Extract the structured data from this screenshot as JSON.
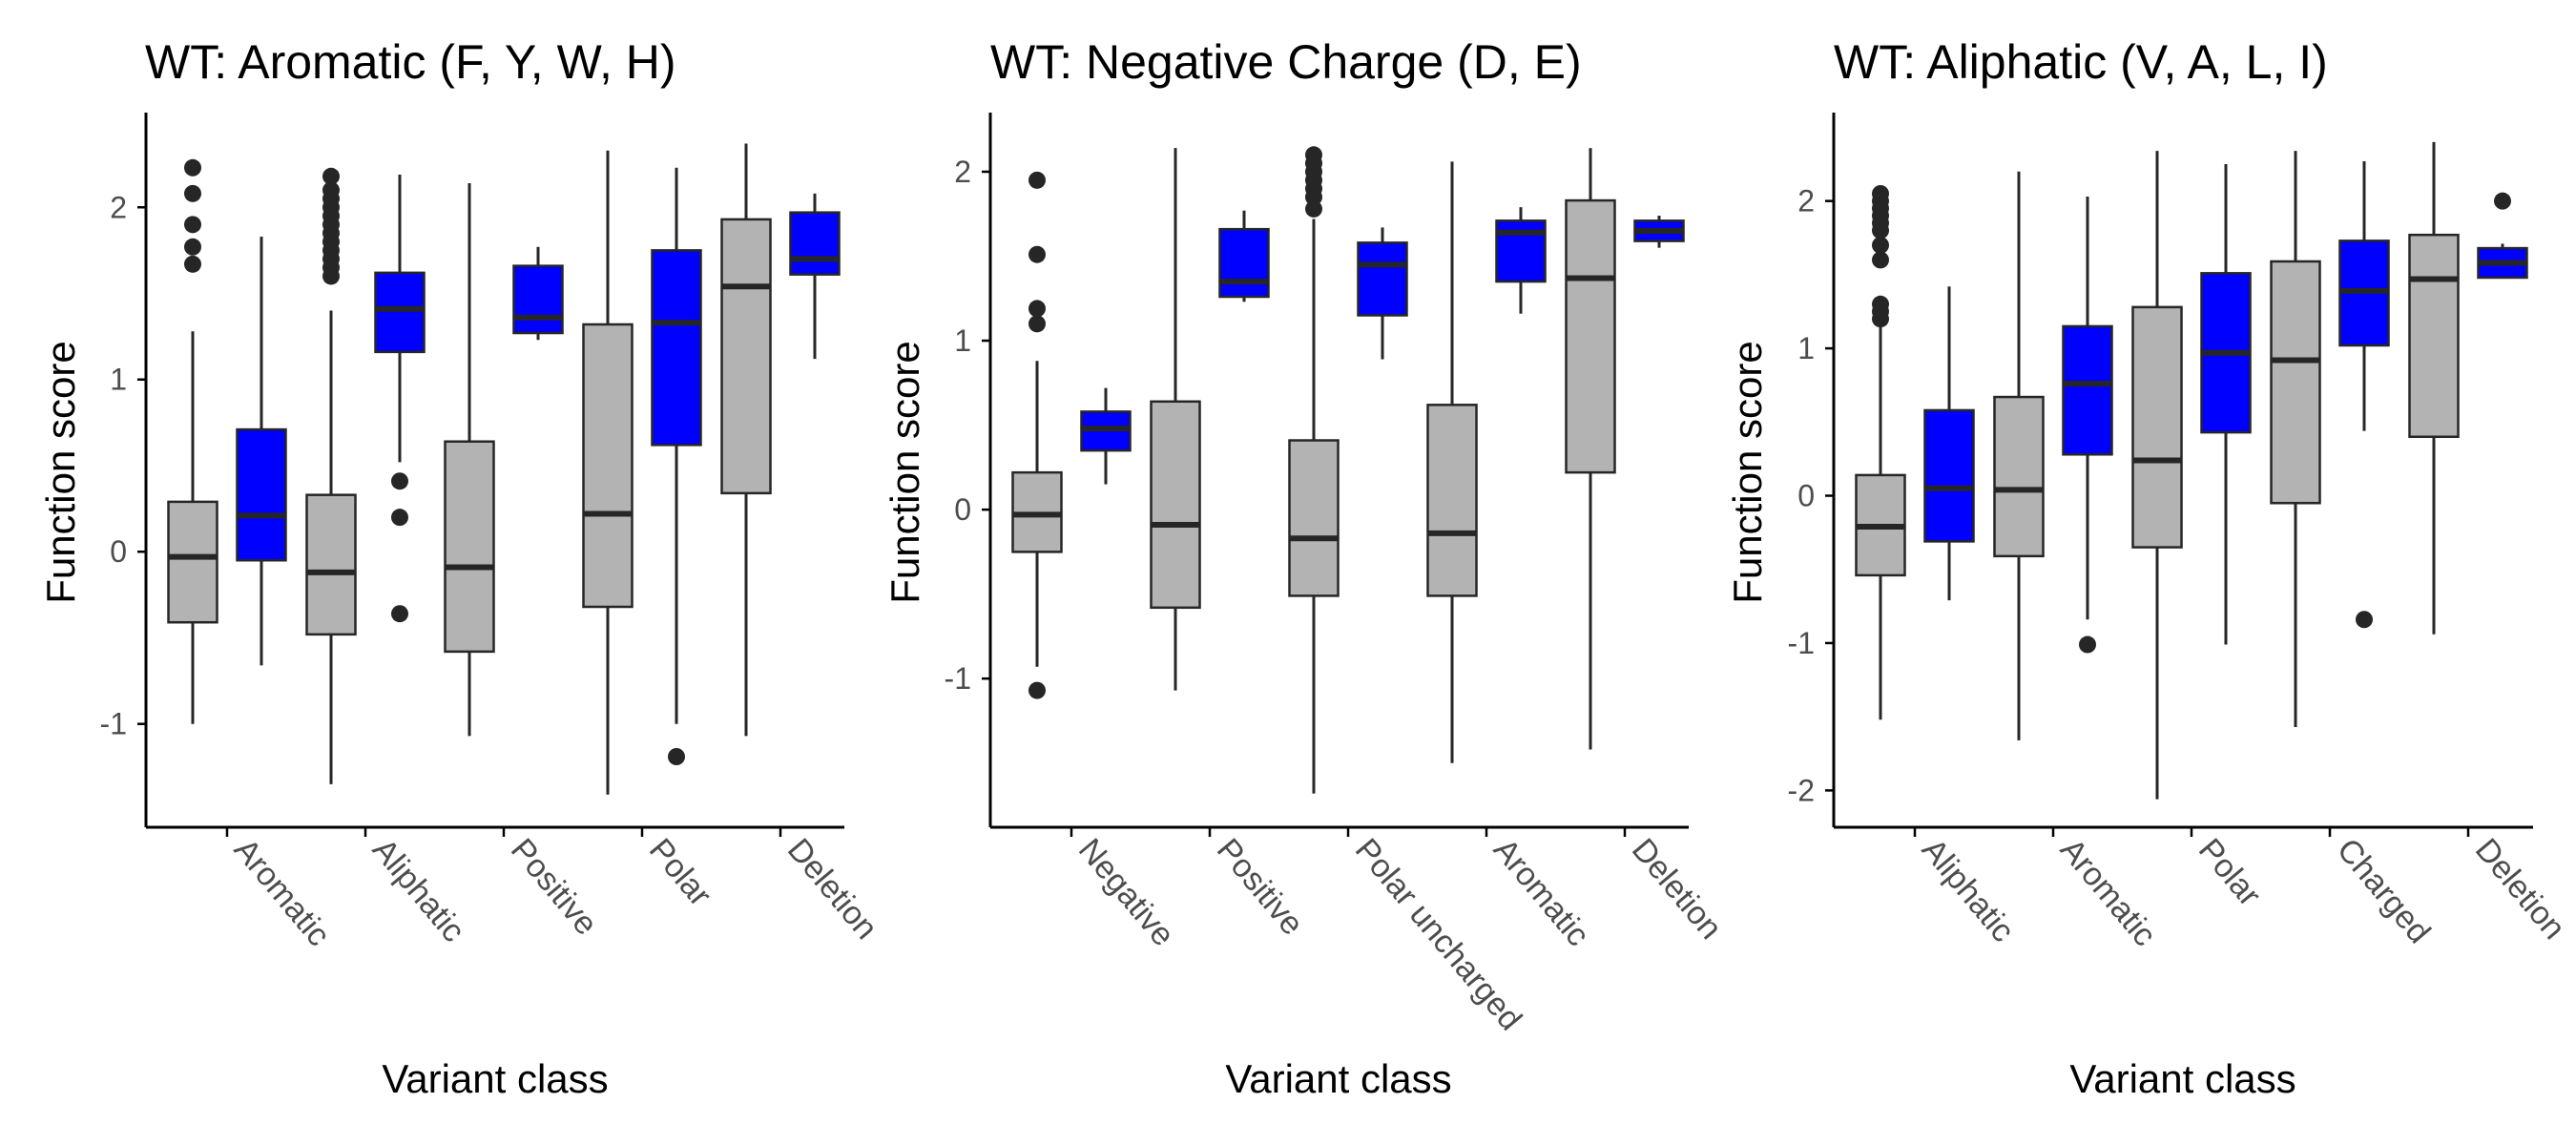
{
  "colors": {
    "gray_box": "#b3b3b3",
    "blue_box": "#0000ff",
    "outline": "#262626",
    "axis": "#000000",
    "tick_text": "#4d4d4d"
  },
  "chart_data": [
    {
      "type": "boxplot",
      "title": "WT: Aromatic (F, Y, W, H)",
      "xlabel": "Variant class",
      "ylabel": "Function score",
      "ylim": [
        -1.6,
        2.55
      ],
      "yticks": [
        -1,
        0,
        1,
        2
      ],
      "ytick_labels": [
        "-1",
        "0",
        "1",
        "2"
      ],
      "categories": [
        "Aromatic",
        "Aliphatic",
        "Positive",
        "Polar",
        "Deletion"
      ],
      "series": [
        {
          "color": "gray",
          "boxes": [
            {
              "category": "Aromatic",
              "whisker_low": -1.0,
              "q1": -0.41,
              "median": -0.03,
              "q3": 0.29,
              "whisker_high": 1.28,
              "outliers": [
                1.67,
                1.77,
                1.9,
                2.08,
                2.23
              ]
            },
            {
              "category": "Aliphatic",
              "whisker_low": -1.35,
              "q1": -0.48,
              "median": -0.12,
              "q3": 0.33,
              "whisker_high": 1.4,
              "outliers": [
                1.6,
                1.65,
                1.7,
                1.75,
                1.8,
                1.85,
                1.9,
                1.95,
                2.0,
                2.05,
                2.1,
                2.18
              ]
            },
            {
              "category": "Positive",
              "whisker_low": -1.07,
              "q1": -0.58,
              "median": -0.09,
              "q3": 0.64,
              "whisker_high": 2.14,
              "outliers": []
            },
            {
              "category": "Polar",
              "whisker_low": -1.41,
              "q1": -0.32,
              "median": 0.22,
              "q3": 1.32,
              "whisker_high": 2.33,
              "outliers": []
            },
            {
              "category": "Deletion",
              "whisker_low": -1.07,
              "q1": 0.34,
              "median": 1.54,
              "q3": 1.93,
              "whisker_high": 2.37,
              "outliers": []
            }
          ]
        },
        {
          "color": "blue",
          "boxes": [
            {
              "category": "Aromatic",
              "whisker_low": -0.66,
              "q1": -0.05,
              "median": 0.21,
              "q3": 0.71,
              "whisker_high": 1.83,
              "outliers": []
            },
            {
              "category": "Aliphatic",
              "whisker_low": 0.52,
              "q1": 1.16,
              "median": 1.41,
              "q3": 1.62,
              "whisker_high": 2.19,
              "outliers": [
                -0.36,
                0.2,
                0.41
              ]
            },
            {
              "category": "Positive",
              "whisker_low": 1.23,
              "q1": 1.27,
              "median": 1.36,
              "q3": 1.66,
              "whisker_high": 1.77,
              "outliers": []
            },
            {
              "category": "Polar",
              "whisker_low": -1.0,
              "q1": 0.62,
              "median": 1.33,
              "q3": 1.75,
              "whisker_high": 2.23,
              "outliers": [
                -1.19
              ]
            },
            {
              "category": "Deletion",
              "whisker_low": 1.12,
              "q1": 1.61,
              "median": 1.7,
              "q3": 1.97,
              "whisker_high": 2.08,
              "outliers": []
            }
          ]
        }
      ]
    },
    {
      "type": "boxplot",
      "title": "WT: Negative Charge (D, E)",
      "xlabel": "Variant class",
      "ylabel": "Function score",
      "ylim": [
        -1.88,
        2.35
      ],
      "yticks": [
        -1,
        0,
        1,
        2
      ],
      "ytick_labels": [
        "-1",
        "0",
        "1",
        "2"
      ],
      "categories": [
        "Negative",
        "Positive",
        "Polar uncharged",
        "Aromatic",
        "Deletion"
      ],
      "series": [
        {
          "color": "gray",
          "boxes": [
            {
              "category": "Negative",
              "whisker_low": -0.93,
              "q1": -0.25,
              "median": -0.03,
              "q3": 0.22,
              "whisker_high": 0.88,
              "outliers": [
                -1.07,
                1.1,
                1.19,
                1.51,
                1.95
              ]
            },
            {
              "category": "Positive",
              "whisker_low": -1.07,
              "q1": -0.58,
              "median": -0.09,
              "q3": 0.64,
              "whisker_high": 2.14,
              "outliers": []
            },
            {
              "category": "Polar uncharged",
              "whisker_low": -1.68,
              "q1": -0.51,
              "median": -0.17,
              "q3": 0.41,
              "whisker_high": 1.72,
              "outliers": [
                1.78,
                1.85,
                1.9,
                1.95,
                2.0,
                2.05,
                2.1
              ]
            },
            {
              "category": "Aromatic",
              "whisker_low": -1.5,
              "q1": -0.51,
              "median": -0.14,
              "q3": 0.62,
              "whisker_high": 2.06,
              "outliers": []
            },
            {
              "category": "Deletion",
              "whisker_low": -1.42,
              "q1": 0.22,
              "median": 1.37,
              "q3": 1.83,
              "whisker_high": 2.14,
              "outliers": []
            }
          ]
        },
        {
          "color": "blue",
          "boxes": [
            {
              "category": "Negative",
              "whisker_low": 0.15,
              "q1": 0.35,
              "median": 0.48,
              "q3": 0.58,
              "whisker_high": 0.72,
              "outliers": []
            },
            {
              "category": "Positive",
              "whisker_low": 1.23,
              "q1": 1.26,
              "median": 1.35,
              "q3": 1.66,
              "whisker_high": 1.77,
              "outliers": []
            },
            {
              "category": "Polar uncharged",
              "whisker_low": 0.89,
              "q1": 1.15,
              "median": 1.45,
              "q3": 1.58,
              "whisker_high": 1.67,
              "outliers": []
            },
            {
              "category": "Aromatic",
              "whisker_low": 1.16,
              "q1": 1.35,
              "median": 1.64,
              "q3": 1.71,
              "whisker_high": 1.79,
              "outliers": []
            },
            {
              "category": "Deletion",
              "whisker_low": 1.55,
              "q1": 1.59,
              "median": 1.65,
              "q3": 1.71,
              "whisker_high": 1.74,
              "outliers": []
            }
          ]
        }
      ]
    },
    {
      "type": "boxplot",
      "title": "WT: Aliphatic (V, A, L, I)",
      "xlabel": "Variant class",
      "ylabel": "Function score",
      "ylim": [
        -2.25,
        2.6
      ],
      "yticks": [
        -2,
        -1,
        0,
        1,
        2
      ],
      "ytick_labels": [
        "-2",
        "-1",
        "0",
        "1",
        "2"
      ],
      "categories": [
        "Aliphatic",
        "Aromatic",
        "Polar",
        "Charged",
        "Deletion"
      ],
      "series": [
        {
          "color": "gray",
          "boxes": [
            {
              "category": "Aliphatic",
              "whisker_low": -1.52,
              "q1": -0.54,
              "median": -0.21,
              "q3": 0.14,
              "whisker_high": 1.15,
              "outliers": [
                1.2,
                1.25,
                1.3,
                1.6,
                1.7,
                1.8,
                1.85,
                1.9,
                1.95,
                2.0,
                2.05
              ]
            },
            {
              "category": "Aromatic",
              "whisker_low": -1.66,
              "q1": -0.41,
              "median": 0.04,
              "q3": 0.67,
              "whisker_high": 2.2,
              "outliers": []
            },
            {
              "category": "Polar",
              "whisker_low": -2.06,
              "q1": -0.35,
              "median": 0.24,
              "q3": 1.28,
              "whisker_high": 2.34,
              "outliers": []
            },
            {
              "category": "Charged",
              "whisker_low": -1.57,
              "q1": -0.05,
              "median": 0.92,
              "q3": 1.59,
              "whisker_high": 2.34,
              "outliers": []
            },
            {
              "category": "Deletion",
              "whisker_low": -0.94,
              "q1": 0.4,
              "median": 1.47,
              "q3": 1.77,
              "whisker_high": 2.4,
              "outliers": []
            }
          ]
        },
        {
          "color": "blue",
          "boxes": [
            {
              "category": "Aliphatic",
              "whisker_low": -0.71,
              "q1": -0.31,
              "median": 0.05,
              "q3": 0.58,
              "whisker_high": 1.42,
              "outliers": []
            },
            {
              "category": "Aromatic",
              "whisker_low": -0.84,
              "q1": 0.28,
              "median": 0.76,
              "q3": 1.15,
              "whisker_high": 2.03,
              "outliers": [
                -1.01
              ]
            },
            {
              "category": "Polar",
              "whisker_low": -1.01,
              "q1": 0.43,
              "median": 0.97,
              "q3": 1.51,
              "whisker_high": 2.25,
              "outliers": []
            },
            {
              "category": "Charged",
              "whisker_low": 0.44,
              "q1": 1.02,
              "median": 1.39,
              "q3": 1.73,
              "whisker_high": 2.27,
              "outliers": [
                -0.84
              ]
            },
            {
              "category": "Deletion",
              "whisker_low": 1.48,
              "q1": 1.48,
              "median": 1.58,
              "q3": 1.68,
              "whisker_high": 1.71,
              "outliers": [
                2.0
              ]
            }
          ]
        }
      ]
    }
  ]
}
